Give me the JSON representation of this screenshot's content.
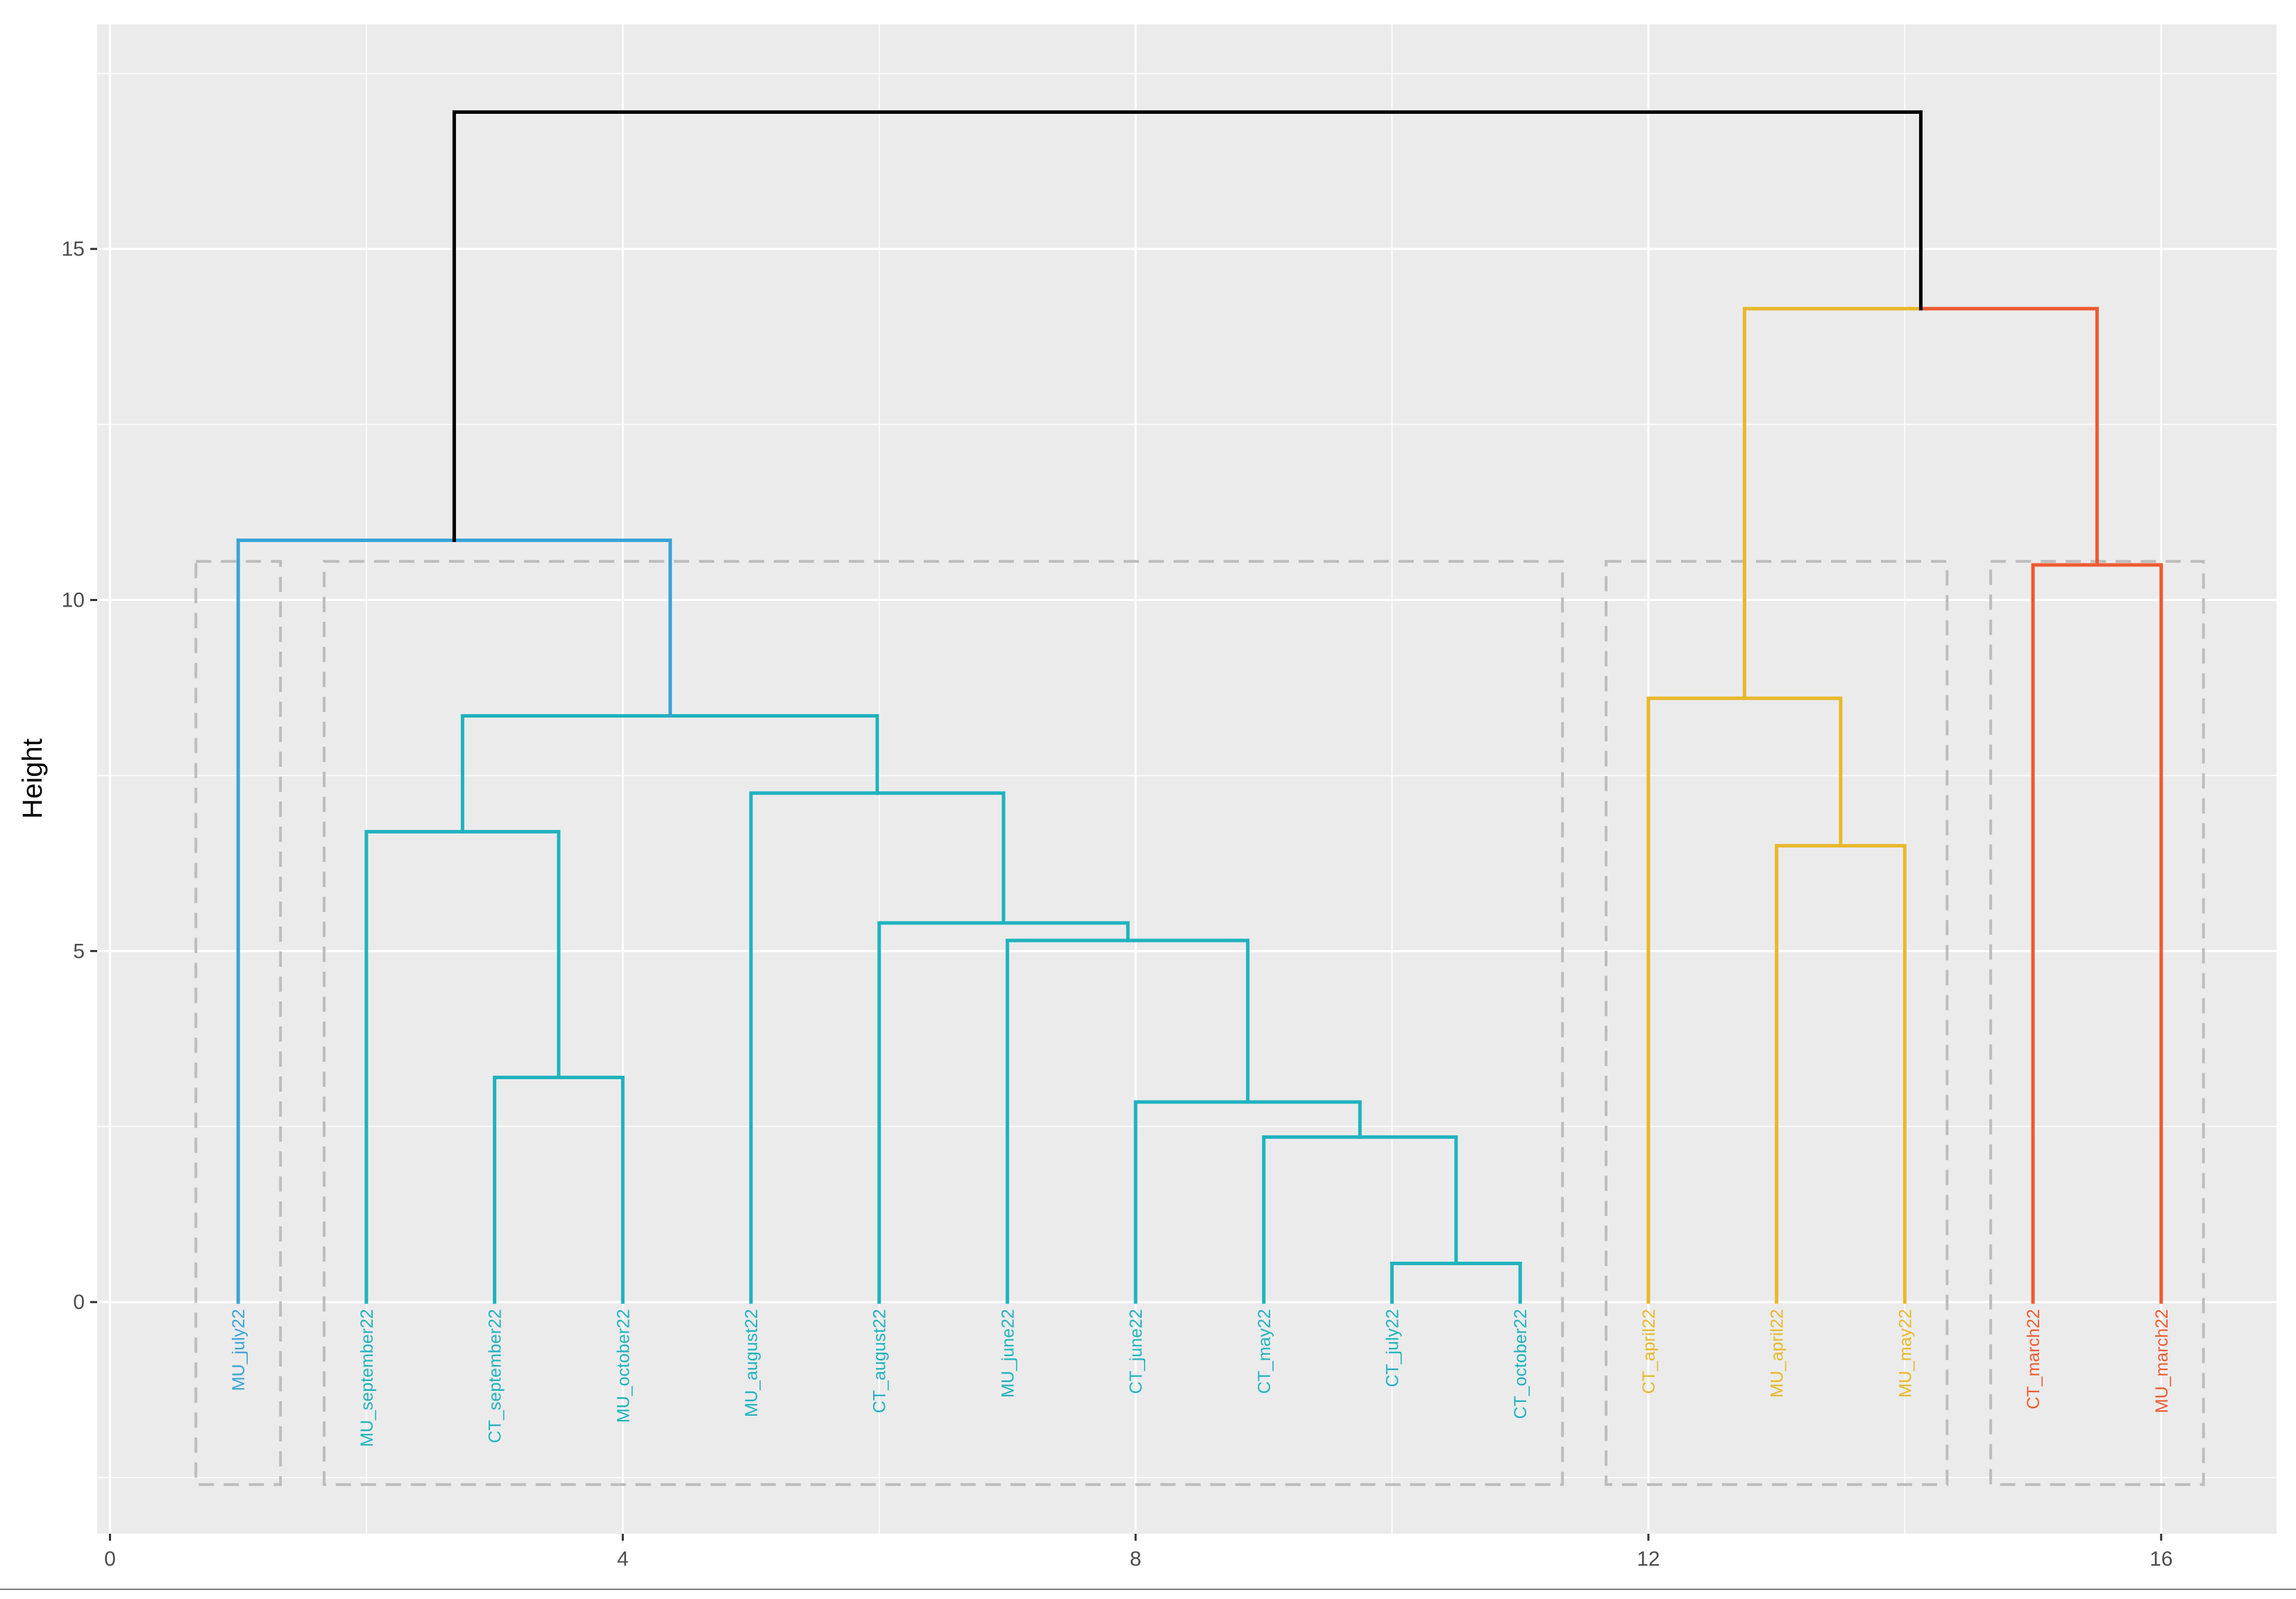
{
  "chart_data": {
    "type": "dendrogram",
    "title": "",
    "xlabel": "",
    "ylabel": "Height",
    "xlim": [
      -0.1,
      16.9
    ],
    "ylim": [
      -3.3,
      18.2
    ],
    "x_ticks": [
      0,
      4,
      8,
      12,
      16
    ],
    "x_tick_labels": [
      "0",
      "4",
      "8",
      "12",
      "16"
    ],
    "y_ticks": [
      0,
      5,
      10,
      15
    ],
    "y_tick_labels": [
      "0",
      "5",
      "10",
      "15"
    ],
    "grid": true,
    "colors": {
      "panel": "#ebebeb",
      "grid": "#ffffff",
      "root": "#000000",
      "cluster_blue": "#3aa3d8",
      "cluster_teal": "#1fb2bf",
      "cluster_yellow": "#e8b82a",
      "cluster_red": "#ee5a30",
      "rect": "#bdbdbd"
    },
    "leaves": [
      {
        "x": 1,
        "label": "MU_july22",
        "cluster": "cluster_blue"
      },
      {
        "x": 2,
        "label": "MU_september22",
        "cluster": "cluster_teal"
      },
      {
        "x": 3,
        "label": "CT_september22",
        "cluster": "cluster_teal"
      },
      {
        "x": 4,
        "label": "MU_october22",
        "cluster": "cluster_teal"
      },
      {
        "x": 5,
        "label": "MU_august22",
        "cluster": "cluster_teal"
      },
      {
        "x": 6,
        "label": "CT_august22",
        "cluster": "cluster_teal"
      },
      {
        "x": 7,
        "label": "MU_june22",
        "cluster": "cluster_teal"
      },
      {
        "x": 8,
        "label": "CT_june22",
        "cluster": "cluster_teal"
      },
      {
        "x": 9,
        "label": "CT_may22",
        "cluster": "cluster_teal"
      },
      {
        "x": 10,
        "label": "CT_july22",
        "cluster": "cluster_teal"
      },
      {
        "x": 11,
        "label": "CT_october22",
        "cluster": "cluster_teal"
      },
      {
        "x": 12,
        "label": "CT_april22",
        "cluster": "cluster_yellow"
      },
      {
        "x": 13,
        "label": "MU_april22",
        "cluster": "cluster_yellow"
      },
      {
        "x": 14,
        "label": "MU_may22",
        "cluster": "cluster_yellow"
      },
      {
        "x": 15,
        "label": "CT_march22",
        "cluster": "cluster_red"
      },
      {
        "x": 16,
        "label": "MU_march22",
        "cluster": "cluster_red"
      }
    ],
    "merges": [
      {
        "x1": 10,
        "y1": 0,
        "x2": 11,
        "y2": 0,
        "h": 0.55,
        "color": "cluster_teal"
      },
      {
        "x1": 9,
        "y1": 0,
        "x2": 10.5,
        "y2": 0.55,
        "h": 2.35,
        "color": "cluster_teal"
      },
      {
        "x1": 8,
        "y1": 0,
        "x2": 9.75,
        "y2": 2.35,
        "h": 2.85,
        "color": "cluster_teal"
      },
      {
        "x1": 7,
        "y1": 0,
        "x2": 8.875,
        "y2": 2.85,
        "h": 5.15,
        "color": "cluster_teal"
      },
      {
        "x1": 6,
        "y1": 0,
        "x2": 7.94,
        "y2": 5.15,
        "h": 5.4,
        "color": "cluster_teal"
      },
      {
        "x1": 5,
        "y1": 0,
        "x2": 6.97,
        "y2": 5.4,
        "h": 7.25,
        "color": "cluster_teal"
      },
      {
        "x1": 3,
        "y1": 0,
        "x2": 4,
        "y2": 0,
        "h": 3.2,
        "color": "cluster_teal"
      },
      {
        "x1": 2,
        "y1": 0,
        "x2": 3.5,
        "y2": 3.2,
        "h": 6.7,
        "color": "cluster_teal"
      },
      {
        "x1": 2.75,
        "y1": 6.7,
        "x2": 5.985,
        "y2": 7.25,
        "h": 8.35,
        "color": "cluster_teal"
      },
      {
        "x1": 1,
        "y1": 0,
        "x2": 4.37,
        "y2": 8.35,
        "h": 10.85,
        "color": "cluster_blue"
      },
      {
        "x1": 13,
        "y1": 0,
        "x2": 14,
        "y2": 0,
        "h": 6.5,
        "color": "cluster_yellow"
      },
      {
        "x1": 12,
        "y1": 0,
        "x2": 13.5,
        "y2": 6.5,
        "h": 8.6,
        "color": "cluster_yellow"
      },
      {
        "x1": 15,
        "y1": 0,
        "x2": 16,
        "y2": 0,
        "h": 10.5,
        "color": "cluster_red"
      },
      {
        "x1": 12.75,
        "y1": 8.6,
        "x2": 15.5,
        "y2": 10.5,
        "h": 14.15,
        "color": "split",
        "left_color": "cluster_yellow",
        "right_color": "cluster_red"
      },
      {
        "x1": 2.685,
        "y1": 10.85,
        "x2": 14.125,
        "y2": 14.15,
        "h": 16.95,
        "color": "root"
      }
    ],
    "cluster_rects": [
      {
        "x_from": 0.67,
        "x_to": 1.33,
        "y_from": -2.6,
        "y_to": 10.55
      },
      {
        "x_from": 1.67,
        "x_to": 11.33,
        "y_from": -2.6,
        "y_to": 10.55
      },
      {
        "x_from": 11.67,
        "x_to": 14.33,
        "y_from": -2.6,
        "y_to": 10.55
      },
      {
        "x_from": 14.67,
        "x_to": 16.33,
        "y_from": -2.6,
        "y_to": 10.55
      }
    ]
  }
}
